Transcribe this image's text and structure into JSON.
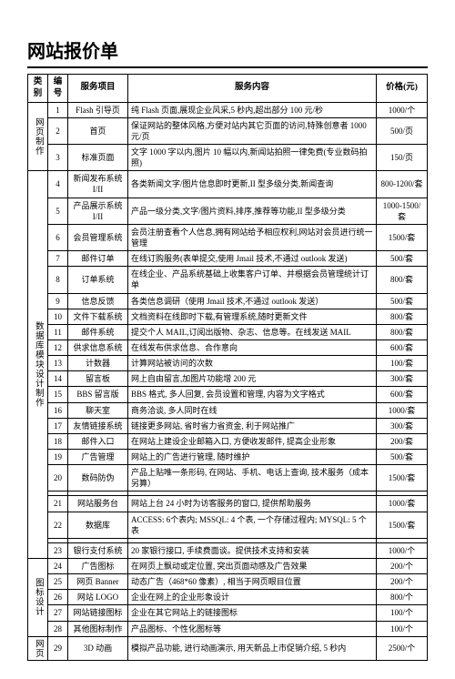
{
  "title": "网站报价单",
  "headers": {
    "category": "类别",
    "num": "编号",
    "item": "服务项目",
    "desc": "服务内容",
    "price": "价格(元)"
  },
  "groups": [
    {
      "category": "网页制作",
      "rows": [
        {
          "n": "1",
          "item": "Flash 引导页",
          "desc": "纯 Flash 页面,展现企业风采,5 秒内,超出部分 100 元/秒",
          "price": "1000/个"
        },
        {
          "n": "2",
          "item": "首页",
          "desc": "保证网站的整体风格,方便对站内其它页面的访问,特殊创意者 1000 元/页",
          "price": "500/页"
        },
        {
          "n": "3",
          "item": "标准页面",
          "desc": "文字 1000 字以内,图片 10 幅以内,新闻站拍照一律免费(专业数码拍照)",
          "price": "150/页"
        }
      ]
    },
    {
      "category": "数据库模块设计制作",
      "rows": [
        {
          "n": "4",
          "item": "新闻发布系统 I/II",
          "desc": "各类新闻文字/图片信息即时更新,II 型多级分类,新闻查询",
          "price": "800-1200/套"
        },
        {
          "n": "5",
          "item": "产品展示系统 I/II",
          "desc": "产品一级分类,文字/图片资料,排序,推荐等功能,II 型多级分类",
          "price": "1000-1500/套"
        },
        {
          "n": "6",
          "item": "会员管理系统",
          "desc": "会员注册查看个人信息,拥有网站给予相应权利,网站对会员进行统一管理",
          "price": "1500/套"
        },
        {
          "n": "7",
          "item": "邮件订单",
          "desc": "在线订购服务(表单提交,使用 Jmail 技术,不通过 outlook 发送)",
          "price": "500/套"
        },
        {
          "n": "8",
          "item": "订单系统",
          "desc": "在线企业、产品系统基础上收集客户订单、并根据会员管理统计订单",
          "price": "800/套"
        },
        {
          "n": "9",
          "item": "信息反馈",
          "desc": "各类信息调研（使用 Jmail 技术,不通过 outlook 发送）",
          "price": "500/套"
        },
        {
          "n": "10",
          "item": "文件下载系统",
          "desc": "文档资料在线即时下载,有管理系统,随时更新文件",
          "price": "800/套"
        },
        {
          "n": "11",
          "item": "邮件系统",
          "desc": "提交个人 MAIL,订阅出版物、杂志、信息等。在线发送 MAIL",
          "price": "800/套"
        },
        {
          "n": "12",
          "item": "供求信息系统",
          "desc": "在线发布供求信息、合作意向",
          "price": "600/套"
        },
        {
          "n": "13",
          "item": "计数器",
          "desc": "计算网站被访问的次数",
          "price": "100/套"
        },
        {
          "n": "14",
          "item": "留言板",
          "desc": "网上自由留言,加图片功能增 200 元",
          "price": "300/套"
        },
        {
          "n": "15",
          "item": "BBS 留言版",
          "desc": "BBS 格式, 多人回复, 会员设置和管理, 内容为文字格式",
          "price": "600/套"
        },
        {
          "n": "16",
          "item": "聊天室",
          "desc": "商务洽谈, 多人同时在线",
          "price": "1000/套"
        },
        {
          "n": "17",
          "item": "友情链接系统",
          "desc": "链接更多网站, 省时省力省资金, 利于网站推广",
          "price": "300/套"
        },
        {
          "n": "18",
          "item": "邮件入口",
          "desc": "在网站上建设企业邮箱入口, 方便收发邮件, 提高企业形象",
          "price": "200/套"
        },
        {
          "n": "19",
          "item": "广告管理",
          "desc": "网站上的广告进行管理, 随时维护",
          "price": "500/套"
        },
        {
          "n": "20",
          "item": "数码防伪",
          "desc": "产品上贴唯一条形码, 在网站、手机、电话上查询, 技术服务（成本另算）",
          "price": "1500/套"
        },
        {
          "n": "",
          "item": "",
          "desc": "",
          "price": ""
        },
        {
          "n": "21",
          "item": "网站服务台",
          "desc": "网站上台 24 小时为访客服务的窗口, 提供帮助服务",
          "price": "1000/套"
        },
        {
          "n": "22",
          "item": "数据库",
          "desc": "ACCESS: 6个表内; MSSQL: 4 个表, 一个存储过程内; MYSQL: 5 个表",
          "price": "1500/套"
        },
        {
          "n": "",
          "item": "",
          "desc": "",
          "price": ""
        },
        {
          "n": "23",
          "item": "银行支付系统",
          "desc": "20 家银行接口, 手续费面谈。提供技术支持和安装",
          "price": "1000/个"
        }
      ]
    },
    {
      "category": "图标设计",
      "rows": [
        {
          "n": "24",
          "item": "广告图标",
          "desc": "在网页上飘动或定位置, 突出页面动感及广告效果",
          "price": "200/个"
        },
        {
          "n": "25",
          "item": "网页 Banner",
          "desc": "动态广告（468*60 像素）, 相当于网页眼目位置",
          "price": "200/个"
        },
        {
          "n": "26",
          "item": "网站 LOGO",
          "desc": "企业在网上的企业形象设计",
          "price": "800/个"
        },
        {
          "n": "27",
          "item": "网站链接图标",
          "desc": "企业在其它网站上的链接图标",
          "price": "100/个"
        },
        {
          "n": "28",
          "item": "其他图标制作",
          "desc": "产品图标、个性化图标等",
          "price": "100/个"
        }
      ]
    },
    {
      "category": "网页",
      "rows": [
        {
          "n": "29",
          "item": "3D 动画",
          "desc": "模拟产品功能, 进行动画演示, 用天新品上市促销介绍, 5 秒内",
          "price": "2500/个"
        }
      ]
    }
  ]
}
